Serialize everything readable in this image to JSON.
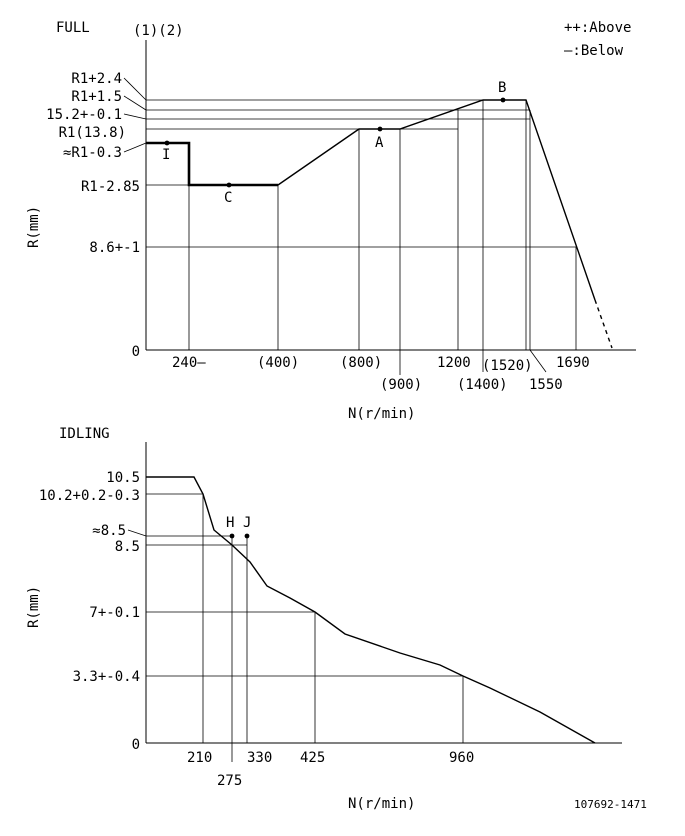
{
  "doc_id": "107692-1471",
  "chart_data": [
    {
      "type": "line",
      "title": "FULL",
      "subtitle": "(1)(2)",
      "xlabel": "N(r/min)",
      "ylabel": "R(mm)",
      "legend": {
        "above": "++:Above",
        "below": "—:Below"
      },
      "x_ticks": [
        "240—",
        "(400)",
        "(800)",
        "(900)",
        "1200",
        "(1400)",
        "(1520)",
        "1550",
        "1690"
      ],
      "y_ticks": [
        "R1+2.4",
        "R1+1.5",
        "15.2+-0.1",
        "R1(13.8)",
        "≈R1-0.3",
        "R1-2.85",
        "8.6+-1",
        "0"
      ],
      "point_labels": [
        "I",
        "C",
        "A",
        "B"
      ],
      "series": [
        {
          "x": [
            0,
            240,
            240,
            400,
            800,
            900,
            1400,
            1550,
            1690,
            1800
          ],
          "y": [
            13.5,
            13.5,
            10.95,
            10.95,
            13.8,
            13.8,
            15.3,
            15.3,
            8.6,
            0
          ]
        }
      ]
    },
    {
      "type": "line",
      "title": "IDLING",
      "xlabel": "N(r/min)",
      "ylabel": "R(mm)",
      "x_ticks": [
        "210",
        "275",
        "330",
        "425",
        "960"
      ],
      "y_ticks": [
        "10.5",
        "10.2+0.2-0.3",
        "≈8.5",
        "8.5",
        "7+-0.1",
        "3.3+-0.4",
        "0"
      ],
      "point_labels": [
        "H",
        "J"
      ],
      "series": [
        {
          "x": [
            0,
            185,
            210,
            245,
            275,
            330,
            390,
            425,
            630,
            960,
            1150,
            1260
          ],
          "y": [
            10.5,
            10.5,
            10.2,
            8.7,
            8.5,
            7.7,
            7.3,
            7.0,
            5.6,
            3.3,
            1.8,
            0
          ]
        }
      ]
    }
  ]
}
